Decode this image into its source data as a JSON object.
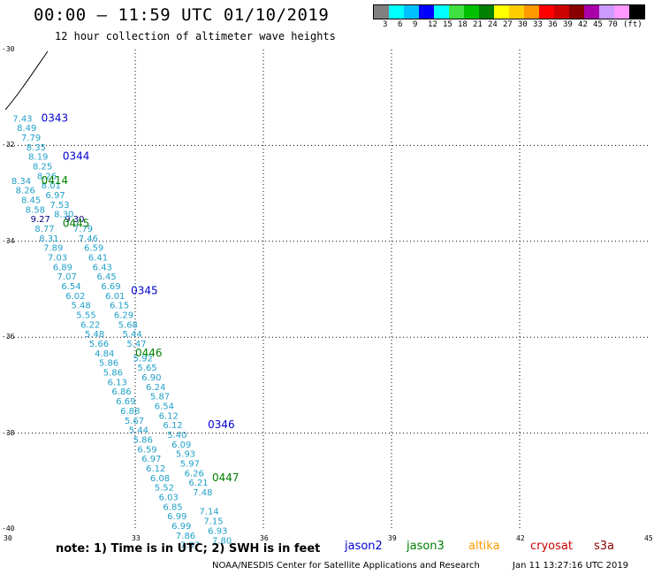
{
  "header": {
    "title": "00:00 – 11:59 UTC 01/10/2019",
    "subtitle": "12 hour collection of altimeter wave heights"
  },
  "legend": {
    "colors": [
      "#808080",
      "#00ffff",
      "#00c0ff",
      "#0000ff",
      "#00ffff",
      "#40e040",
      "#00c000",
      "#008000",
      "#ffff00",
      "#ffcc00",
      "#ff9900",
      "#ff0000",
      "#cc0000",
      "#880000",
      "#aa00aa",
      "#cc99ff",
      "#ff99ff",
      "#000000"
    ],
    "labels": [
      "3",
      "6",
      "9",
      "12",
      "15",
      "18",
      "21",
      "24",
      "27",
      "30",
      "33",
      "36",
      "39",
      "42",
      "45",
      "70",
      "(ft)"
    ]
  },
  "axes": {
    "x_ticks": [
      "30",
      "33",
      "36",
      "39",
      "42",
      "45"
    ],
    "y_ticks": [
      "-30",
      "-32",
      "-34",
      "-36",
      "-38",
      "-40"
    ]
  },
  "passes": [
    {
      "label": "0343",
      "color": "#0000cc",
      "lon": 30.8,
      "lat": -31.5
    },
    {
      "label": "0344",
      "color": "#0000cc",
      "lon": 31.3,
      "lat": -32.3
    },
    {
      "label": "0414",
      "color": "#008000",
      "lon": 30.8,
      "lat": -32.8
    },
    {
      "label": "0445",
      "color": "#008000",
      "lon": 31.3,
      "lat": -33.7
    },
    {
      "label": "0345",
      "color": "#0000cc",
      "lon": 32.9,
      "lat": -35.1
    },
    {
      "label": "0446",
      "color": "#008000",
      "lon": 33.0,
      "lat": -36.4
    },
    {
      "label": "0346",
      "color": "#0000cc",
      "lon": 34.7,
      "lat": -37.9
    },
    {
      "label": "0447",
      "color": "#008000",
      "lon": 34.8,
      "lat": -39.0
    }
  ],
  "swh_values": [
    {
      "v": "7.43",
      "lon": 30.13,
      "lat": -31.5
    },
    {
      "v": "8.49",
      "lon": 30.23,
      "lat": -31.7
    },
    {
      "v": "7.79",
      "lon": 30.33,
      "lat": -31.9
    },
    {
      "v": "8.35",
      "lon": 30.45,
      "lat": -32.1
    },
    {
      "v": "8.19",
      "lon": 30.5,
      "lat": -32.3
    },
    {
      "v": "8.25",
      "lon": 30.6,
      "lat": -32.5
    },
    {
      "v": "8.34",
      "lon": 30.1,
      "lat": -32.8
    },
    {
      "v": "8.26",
      "lon": 30.2,
      "lat": -33.0
    },
    {
      "v": "8.45",
      "lon": 30.33,
      "lat": -33.2
    },
    {
      "v": "8.58",
      "lon": 30.43,
      "lat": -33.4
    },
    {
      "v": "9.27",
      "lon": 30.55,
      "lat": -33.6
    },
    {
      "v": "8.77",
      "lon": 30.65,
      "lat": -33.8
    },
    {
      "v": "8.31",
      "lon": 30.75,
      "lat": -34.0
    },
    {
      "v": "7.89",
      "lon": 30.85,
      "lat": -34.2
    },
    {
      "v": "7.03",
      "lon": 30.95,
      "lat": -34.4
    },
    {
      "v": "6.89",
      "lon": 31.07,
      "lat": -34.6
    },
    {
      "v": "7.07",
      "lon": 31.17,
      "lat": -34.8
    },
    {
      "v": "6.54",
      "lon": 31.27,
      "lat": -35.0
    },
    {
      "v": "6.02",
      "lon": 31.37,
      "lat": -35.2
    },
    {
      "v": "5.48",
      "lon": 31.5,
      "lat": -35.4
    },
    {
      "v": "5.55",
      "lon": 31.62,
      "lat": -35.6
    },
    {
      "v": "6.22",
      "lon": 31.72,
      "lat": -35.8
    },
    {
      "v": "5.48",
      "lon": 31.82,
      "lat": -36.0
    },
    {
      "v": "5.66",
      "lon": 31.92,
      "lat": -36.2
    },
    {
      "v": "4.84",
      "lon": 32.05,
      "lat": -36.4
    },
    {
      "v": "5.86",
      "lon": 32.15,
      "lat": -36.6
    },
    {
      "v": "5.86",
      "lon": 32.25,
      "lat": -36.8
    },
    {
      "v": "6.13",
      "lon": 32.35,
      "lat": -37.0
    },
    {
      "v": "6.86",
      "lon": 32.45,
      "lat": -37.2
    },
    {
      "v": "6.69",
      "lon": 32.55,
      "lat": -37.4
    },
    {
      "v": "6.88",
      "lon": 32.65,
      "lat": -37.6
    },
    {
      "v": "5.67",
      "lon": 32.75,
      "lat": -37.8
    },
    {
      "v": "5.44",
      "lon": 32.85,
      "lat": -38.0
    },
    {
      "v": "5.86",
      "lon": 32.95,
      "lat": -38.2
    },
    {
      "v": "6.59",
      "lon": 33.05,
      "lat": -38.4
    },
    {
      "v": "6.97",
      "lon": 33.15,
      "lat": -38.6
    },
    {
      "v": "6.12",
      "lon": 33.25,
      "lat": -38.8
    },
    {
      "v": "6.08",
      "lon": 33.35,
      "lat": -39.0
    },
    {
      "v": "5.52",
      "lon": 33.45,
      "lat": -39.2
    },
    {
      "v": "6.03",
      "lon": 33.55,
      "lat": -39.4
    },
    {
      "v": "6.85",
      "lon": 33.65,
      "lat": -39.6
    },
    {
      "v": "6.99",
      "lon": 33.75,
      "lat": -39.8
    },
    {
      "v": "6.99",
      "lon": 33.85,
      "lat": -40.0
    },
    {
      "v": "7.86",
      "lon": 33.95,
      "lat": -40.2
    },
    {
      "v": "7.87",
      "lon": 34.05,
      "lat": -40.4
    },
    {
      "v": "9.30",
      "lon": 31.35,
      "lat": -33.6
    },
    {
      "v": "7.79",
      "lon": 31.55,
      "lat": -33.8
    },
    {
      "v": "7.46",
      "lon": 31.67,
      "lat": -34.0
    },
    {
      "v": "6.59",
      "lon": 31.8,
      "lat": -34.2
    },
    {
      "v": "6.41",
      "lon": 31.9,
      "lat": -34.4
    },
    {
      "v": "6.43",
      "lon": 32.0,
      "lat": -34.6
    },
    {
      "v": "6.45",
      "lon": 32.1,
      "lat": -34.8
    },
    {
      "v": "6.69",
      "lon": 32.2,
      "lat": -35.0
    },
    {
      "v": "6.01",
      "lon": 32.3,
      "lat": -35.2
    },
    {
      "v": "6.15",
      "lon": 32.4,
      "lat": -35.4
    },
    {
      "v": "6.29",
      "lon": 32.5,
      "lat": -35.6
    },
    {
      "v": "5.68",
      "lon": 32.6,
      "lat": -35.8
    },
    {
      "v": "5.44",
      "lon": 32.7,
      "lat": -36.0
    },
    {
      "v": "5.47",
      "lon": 32.8,
      "lat": -36.2
    },
    {
      "v": "5.92",
      "lon": 32.95,
      "lat": -36.5
    },
    {
      "v": "5.65",
      "lon": 33.05,
      "lat": -36.7
    },
    {
      "v": "6.90",
      "lon": 33.15,
      "lat": -36.9
    },
    {
      "v": "6.24",
      "lon": 33.25,
      "lat": -37.1
    },
    {
      "v": "5.87",
      "lon": 33.35,
      "lat": -37.3
    },
    {
      "v": "6.54",
      "lon": 33.45,
      "lat": -37.5
    },
    {
      "v": "6.12",
      "lon": 33.55,
      "lat": -37.7
    },
    {
      "v": "6.12",
      "lon": 33.65,
      "lat": -37.9
    },
    {
      "v": "5.40",
      "lon": 33.75,
      "lat": -38.1
    },
    {
      "v": "6.09",
      "lon": 33.85,
      "lat": -38.3
    },
    {
      "v": "5.93",
      "lon": 33.95,
      "lat": -38.5
    },
    {
      "v": "5.97",
      "lon": 34.05,
      "lat": -38.7
    },
    {
      "v": "6.26",
      "lon": 34.15,
      "lat": -38.9
    },
    {
      "v": "6.21",
      "lon": 34.25,
      "lat": -39.1
    },
    {
      "v": "7.48",
      "lon": 34.35,
      "lat": -39.3
    },
    {
      "v": "7.14",
      "lon": 34.5,
      "lat": -39.7
    },
    {
      "v": "7.15",
      "lon": 34.6,
      "lat": -39.9
    },
    {
      "v": "6.93",
      "lon": 34.7,
      "lat": -40.1
    },
    {
      "v": "7.80",
      "lon": 34.8,
      "lat": -40.3
    },
    {
      "v": "8.26",
      "lon": 30.7,
      "lat": -32.7
    },
    {
      "v": "8.01",
      "lon": 30.8,
      "lat": -32.9
    },
    {
      "v": "6.97",
      "lon": 30.9,
      "lat": -33.1
    },
    {
      "v": "7.53",
      "lon": 31.0,
      "lat": -33.3
    },
    {
      "v": "8.30",
      "lon": 31.1,
      "lat": -33.5
    }
  ],
  "footer": {
    "note": "note: 1) Time is in UTC; 2) SWH is in feet",
    "satellites": [
      {
        "name": "jason2",
        "color": "#0000cc"
      },
      {
        "name": "jason3",
        "color": "#008000"
      },
      {
        "name": "altika",
        "color": "#ff9900"
      },
      {
        "name": "cryosat",
        "color": "#cc0000"
      },
      {
        "name": "s3a",
        "color": "#880000"
      }
    ],
    "credit": "NOAA/NESDIS Center for Satellite Applications and Research",
    "timestamp": "Jan 11 13:27:16 UTC 2019"
  }
}
